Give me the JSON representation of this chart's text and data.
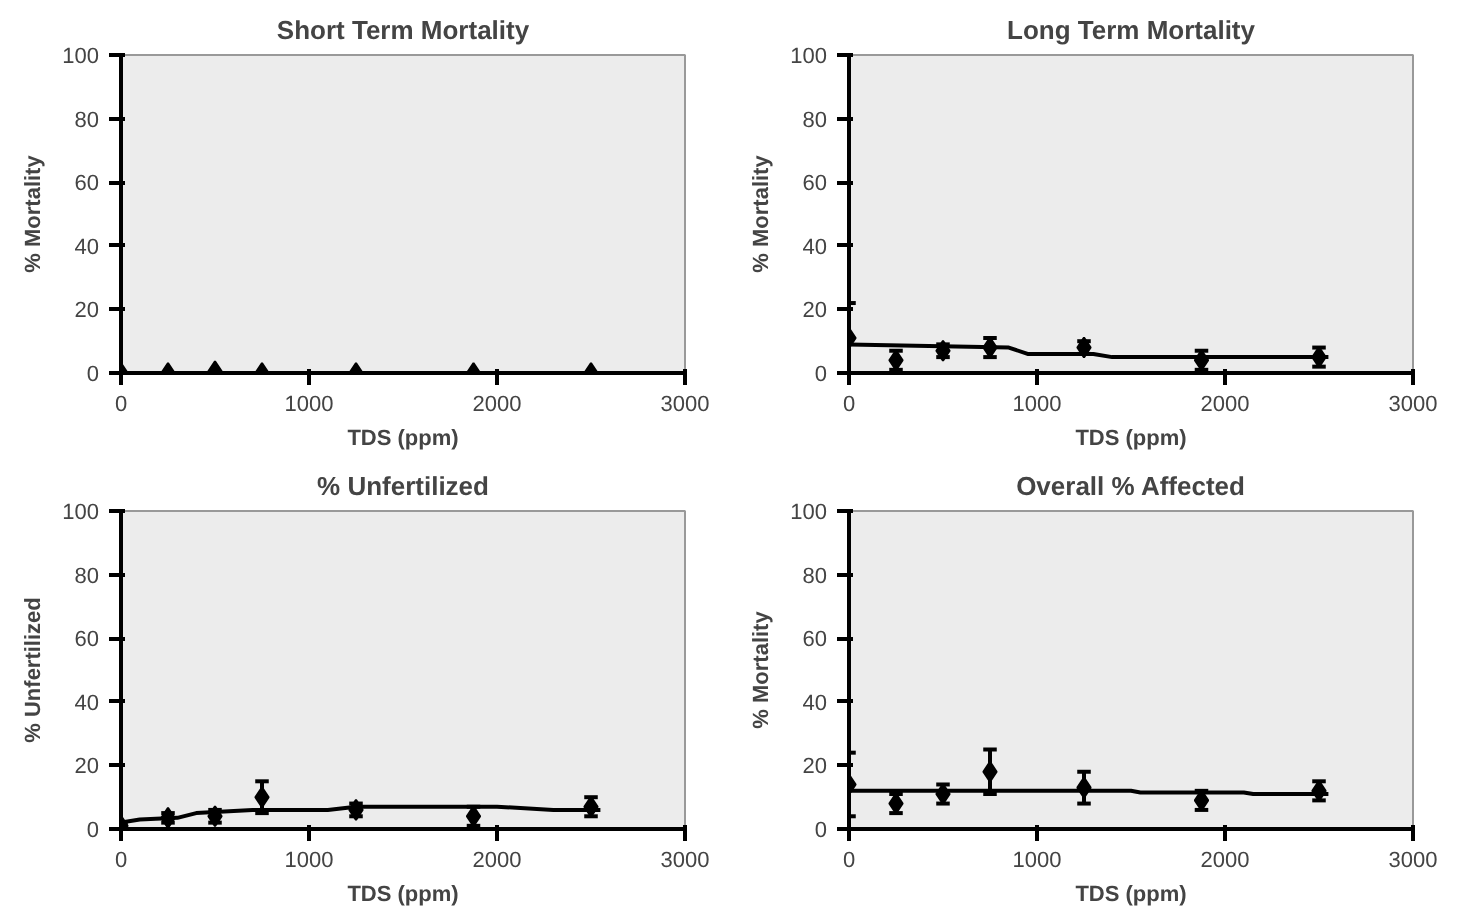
{
  "chart_data": [
    {
      "type": "scatter",
      "title": "Short Term Mortality",
      "xlabel": "TDS (ppm)",
      "ylabel": "% Mortality",
      "xlim": [
        0,
        3000
      ],
      "xticks": [
        0,
        1000,
        2000,
        3000
      ],
      "ylim": [
        0,
        100
      ],
      "yticks": [
        0,
        20,
        40,
        60,
        80,
        100
      ],
      "grid": false,
      "series": [
        {
          "color": "#000000",
          "marker": "diamond",
          "x": [
            0,
            250,
            500,
            750,
            1250,
            1875,
            2500
          ],
          "values": [
            0,
            0,
            0.5,
            0,
            0,
            0,
            0
          ]
        }
      ]
    },
    {
      "type": "scatter",
      "title": "Long Term Mortality",
      "xlabel": "TDS (ppm)",
      "ylabel": "% Mortality",
      "xlim": [
        0,
        3000
      ],
      "xticks": [
        0,
        1000,
        2000,
        3000
      ],
      "ylim": [
        0,
        100
      ],
      "yticks": [
        0,
        20,
        40,
        60,
        80,
        100
      ],
      "grid": false,
      "series": [
        {
          "color": "#000000",
          "marker": "diamond",
          "x": [
            0,
            250,
            500,
            750,
            1250,
            1875,
            2500
          ],
          "values": [
            11,
            4,
            7,
            8,
            8,
            4,
            5
          ],
          "errors": [
            11,
            3,
            2,
            3,
            2,
            3,
            3
          ]
        },
        {
          "type": "line",
          "color": "#000000",
          "x": [
            0,
            850,
            950,
            1300,
            1400,
            2550
          ],
          "values": [
            9,
            8,
            6,
            6,
            5,
            5
          ]
        }
      ]
    },
    {
      "type": "scatter",
      "title": "% Unfertilized",
      "xlabel": "TDS (ppm)",
      "ylabel": "% Unfertilized",
      "xlim": [
        0,
        3000
      ],
      "xticks": [
        0,
        1000,
        2000,
        3000
      ],
      "ylim": [
        0,
        100
      ],
      "yticks": [
        0,
        20,
        40,
        60,
        80,
        100
      ],
      "grid": false,
      "series": [
        {
          "color": "#000000",
          "marker": "diamond",
          "x": [
            0,
            250,
            500,
            750,
            1250,
            1875,
            2500
          ],
          "values": [
            1,
            3.5,
            4,
            10,
            6,
            4,
            7
          ],
          "errors": [
            1,
            1.5,
            2,
            5,
            2,
            3,
            3
          ]
        },
        {
          "type": "line",
          "color": "#000000",
          "x": [
            0,
            100,
            300,
            400,
            700,
            1100,
            1250,
            2000,
            2300,
            2550
          ],
          "values": [
            2,
            3,
            3.5,
            5,
            6,
            6,
            7,
            7,
            6,
            6
          ]
        }
      ]
    },
    {
      "type": "scatter",
      "title": "Overall % Affected",
      "xlabel": "TDS (ppm)",
      "ylabel": "% Mortality",
      "xlim": [
        0,
        3000
      ],
      "xticks": [
        0,
        1000,
        2000,
        3000
      ],
      "ylim": [
        0,
        100
      ],
      "yticks": [
        0,
        20,
        40,
        60,
        80,
        100
      ],
      "grid": false,
      "series": [
        {
          "color": "#000000",
          "marker": "diamond",
          "x": [
            0,
            250,
            500,
            750,
            1250,
            1875,
            2500
          ],
          "values": [
            14,
            8,
            11,
            18,
            13,
            9,
            12
          ],
          "errors": [
            10,
            3,
            3,
            7,
            5,
            3,
            3
          ]
        },
        {
          "type": "line",
          "color": "#000000",
          "x": [
            0,
            1500,
            1550,
            2100,
            2150,
            2550
          ],
          "values": [
            12,
            12,
            11.5,
            11.5,
            11,
            11
          ]
        }
      ]
    }
  ]
}
